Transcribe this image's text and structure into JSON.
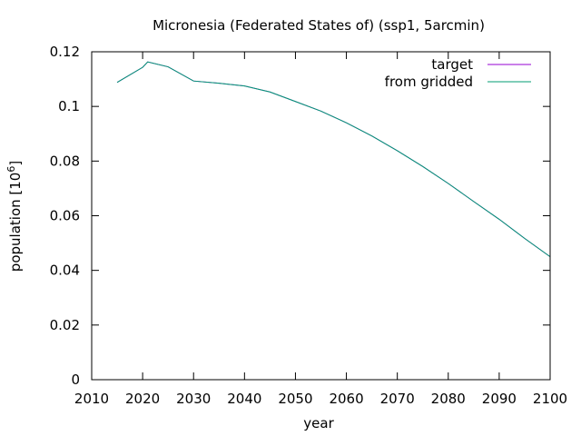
{
  "chart_data": {
    "type": "line",
    "title": "Micronesia (Federated States of) (ssp1, 5arcmin)",
    "xlabel": "year",
    "ylabel": "population [10",
    "ylabel_sup": "6",
    "ylabel_end": "]",
    "xlim": [
      2010,
      2100
    ],
    "ylim": [
      0,
      0.12
    ],
    "xticks": [
      2010,
      2020,
      2030,
      2040,
      2050,
      2060,
      2070,
      2080,
      2090,
      2100
    ],
    "yticks": [
      0,
      0.02,
      0.04,
      0.06,
      0.08,
      0.1,
      0.12
    ],
    "ytick_labels": [
      "0",
      "0.02",
      "0.04",
      "0.06",
      "0.08",
      "0.1",
      "0.12"
    ],
    "legend_position": "top-right",
    "series": [
      {
        "name": "target",
        "color": "#9400d3",
        "x": [
          2015,
          2020,
          2021,
          2025,
          2030,
          2035,
          2040,
          2045,
          2050,
          2055,
          2060,
          2065,
          2070,
          2075,
          2080,
          2085,
          2090,
          2095,
          2100
        ],
        "y": [
          0.1088,
          0.1143,
          0.1163,
          0.1145,
          0.1093,
          0.1085,
          0.1075,
          0.1053,
          0.1018,
          0.0983,
          0.094,
          0.0892,
          0.0838,
          0.078,
          0.0718,
          0.0652,
          0.0587,
          0.0517,
          0.045
        ]
      },
      {
        "name": "from gridded",
        "color": "#009e73",
        "x": [
          2015,
          2020,
          2021,
          2025,
          2030,
          2035,
          2040,
          2045,
          2050,
          2055,
          2060,
          2065,
          2070,
          2075,
          2080,
          2085,
          2090,
          2095,
          2100
        ],
        "y": [
          0.1088,
          0.1143,
          0.1163,
          0.1145,
          0.1093,
          0.1085,
          0.1075,
          0.1053,
          0.1018,
          0.0983,
          0.094,
          0.0892,
          0.0838,
          0.078,
          0.0718,
          0.0652,
          0.0587,
          0.0517,
          0.045
        ]
      }
    ]
  }
}
